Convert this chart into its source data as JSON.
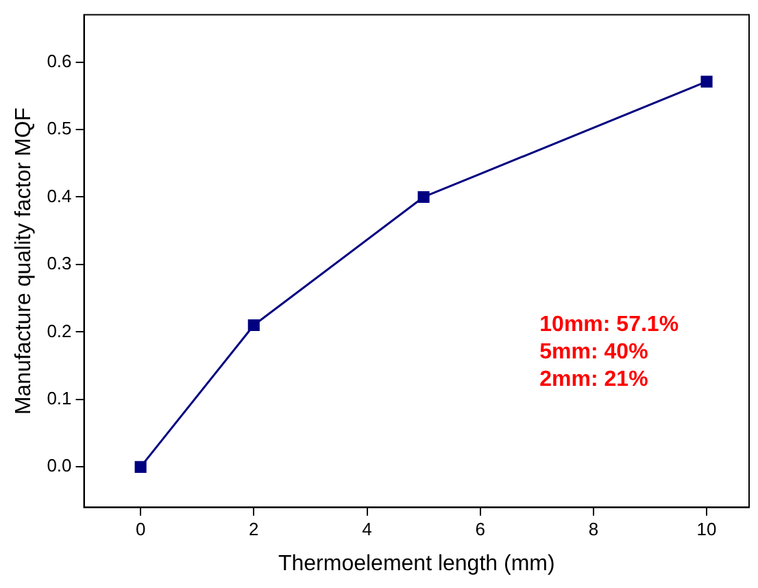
{
  "chart_data": {
    "type": "line",
    "xlabel": "Thermoelement length (mm)",
    "ylabel": "Manufacture quality factor MQF",
    "x": [
      0,
      2,
      5,
      10
    ],
    "series": [
      {
        "color": "#000080",
        "values": [
          0,
          0.21,
          0.4,
          0.571
        ]
      }
    ],
    "xlim": [
      -1,
      10.75
    ],
    "xticks": [
      0,
      2,
      4,
      6,
      8,
      10
    ],
    "ylim": [
      -0.06,
      0.67
    ],
    "yticks": [
      {
        "value": 0,
        "label": "0.0"
      },
      0.1,
      0.2,
      0.3,
      0.4,
      0.5,
      0.6
    ],
    "grid": false,
    "legend": false,
    "marker": "square",
    "line_style": "solid",
    "annotations": [
      "10mm: 57.1%",
      "5mm: 40%",
      "2mm: 21%"
    ]
  }
}
